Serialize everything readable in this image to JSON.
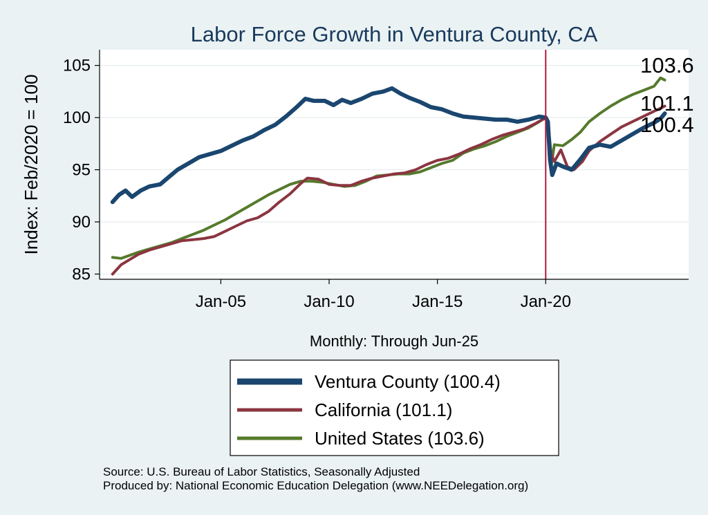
{
  "chart_data": {
    "type": "line",
    "title": "Labor Force Growth in Ventura  County, CA",
    "ylabel": "Index: Feb/2020 = 100",
    "xlabel": "Monthly: Through Jun-25",
    "ylim": [
      84.5,
      106.5
    ],
    "xlim": [
      1999.4,
      2026.6
    ],
    "yticks": [
      85,
      90,
      95,
      100,
      105
    ],
    "ytick_labels": [
      "85",
      "90",
      "95",
      "100",
      "105"
    ],
    "xticks": [
      2005,
      2010,
      2015,
      2020
    ],
    "xtick_labels": [
      "Jan-05",
      "Jan-10",
      "Jan-15",
      "Jan-20"
    ],
    "vline": {
      "x": 2020.0,
      "color": "#b5173d"
    },
    "grid": true,
    "series": [
      {
        "name": "Ventura  County",
        "legend": "Ventura  County (100.4)",
        "end_label": "100.4",
        "color": "#1a466f",
        "points": [
          [
            2000.0,
            91.9
          ],
          [
            2000.3,
            92.6
          ],
          [
            2000.6,
            93.0
          ],
          [
            2000.9,
            92.4
          ],
          [
            2001.3,
            93.0
          ],
          [
            2001.7,
            93.4
          ],
          [
            2002.2,
            93.6
          ],
          [
            2002.6,
            94.3
          ],
          [
            2003.0,
            95.0
          ],
          [
            2003.5,
            95.6
          ],
          [
            2004.0,
            96.2
          ],
          [
            2004.5,
            96.5
          ],
          [
            2005.0,
            96.8
          ],
          [
            2005.5,
            97.3
          ],
          [
            2006.0,
            97.8
          ],
          [
            2006.5,
            98.2
          ],
          [
            2007.0,
            98.8
          ],
          [
            2007.5,
            99.3
          ],
          [
            2008.0,
            100.1
          ],
          [
            2008.5,
            101.0
          ],
          [
            2008.9,
            101.8
          ],
          [
            2009.3,
            101.6
          ],
          [
            2009.8,
            101.6
          ],
          [
            2010.2,
            101.2
          ],
          [
            2010.6,
            101.7
          ],
          [
            2011.0,
            101.4
          ],
          [
            2011.5,
            101.8
          ],
          [
            2012.0,
            102.3
          ],
          [
            2012.5,
            102.5
          ],
          [
            2012.9,
            102.8
          ],
          [
            2013.3,
            102.3
          ],
          [
            2013.7,
            101.9
          ],
          [
            2014.2,
            101.5
          ],
          [
            2014.7,
            101.0
          ],
          [
            2015.2,
            100.8
          ],
          [
            2015.7,
            100.4
          ],
          [
            2016.2,
            100.1
          ],
          [
            2016.7,
            100.0
          ],
          [
            2017.2,
            99.9
          ],
          [
            2017.7,
            99.8
          ],
          [
            2018.2,
            99.8
          ],
          [
            2018.7,
            99.6
          ],
          [
            2019.2,
            99.8
          ],
          [
            2019.7,
            100.1
          ],
          [
            2020.0,
            100.0
          ],
          [
            2020.1,
            99.6
          ],
          [
            2020.2,
            96.0
          ],
          [
            2020.3,
            94.5
          ],
          [
            2020.5,
            95.6
          ],
          [
            2020.8,
            95.3
          ],
          [
            2021.2,
            95.0
          ],
          [
            2021.6,
            96.0
          ],
          [
            2022.0,
            97.1
          ],
          [
            2022.5,
            97.4
          ],
          [
            2023.0,
            97.2
          ],
          [
            2023.5,
            97.8
          ],
          [
            2024.0,
            98.4
          ],
          [
            2024.5,
            99.0
          ],
          [
            2025.0,
            99.5
          ],
          [
            2025.3,
            99.9
          ],
          [
            2025.5,
            100.4
          ]
        ]
      },
      {
        "name": "California",
        "legend": "California (101.1)",
        "end_label": "101.1",
        "color": "#8b3540",
        "points": [
          [
            2000.0,
            85.0
          ],
          [
            2000.4,
            85.9
          ],
          [
            2000.8,
            86.4
          ],
          [
            2001.2,
            86.9
          ],
          [
            2001.7,
            87.3
          ],
          [
            2002.2,
            87.6
          ],
          [
            2002.7,
            87.9
          ],
          [
            2003.2,
            88.2
          ],
          [
            2003.7,
            88.3
          ],
          [
            2004.2,
            88.4
          ],
          [
            2004.7,
            88.6
          ],
          [
            2005.2,
            89.1
          ],
          [
            2005.7,
            89.6
          ],
          [
            2006.2,
            90.1
          ],
          [
            2006.7,
            90.4
          ],
          [
            2007.2,
            91.0
          ],
          [
            2007.7,
            91.9
          ],
          [
            2008.2,
            92.7
          ],
          [
            2008.7,
            93.7
          ],
          [
            2009.0,
            94.2
          ],
          [
            2009.5,
            94.1
          ],
          [
            2010.0,
            93.6
          ],
          [
            2010.5,
            93.5
          ],
          [
            2011.0,
            93.5
          ],
          [
            2011.5,
            93.9
          ],
          [
            2012.0,
            94.2
          ],
          [
            2012.5,
            94.4
          ],
          [
            2013.0,
            94.6
          ],
          [
            2013.5,
            94.7
          ],
          [
            2014.0,
            95.0
          ],
          [
            2014.5,
            95.5
          ],
          [
            2015.0,
            95.9
          ],
          [
            2015.5,
            96.1
          ],
          [
            2016.0,
            96.5
          ],
          [
            2016.5,
            97.0
          ],
          [
            2017.0,
            97.4
          ],
          [
            2017.5,
            97.9
          ],
          [
            2018.0,
            98.3
          ],
          [
            2018.5,
            98.6
          ],
          [
            2019.0,
            98.9
          ],
          [
            2019.5,
            99.4
          ],
          [
            2020.0,
            100.0
          ],
          [
            2020.1,
            99.7
          ],
          [
            2020.25,
            96.5
          ],
          [
            2020.4,
            95.8
          ],
          [
            2020.7,
            96.9
          ],
          [
            2021.0,
            95.3
          ],
          [
            2021.3,
            95.0
          ],
          [
            2021.7,
            95.8
          ],
          [
            2022.0,
            96.8
          ],
          [
            2022.5,
            97.7
          ],
          [
            2023.0,
            98.4
          ],
          [
            2023.5,
            99.1
          ],
          [
            2024.0,
            99.6
          ],
          [
            2024.5,
            100.1
          ],
          [
            2025.0,
            100.6
          ],
          [
            2025.3,
            100.9
          ],
          [
            2025.5,
            101.1
          ]
        ]
      },
      {
        "name": "United States",
        "legend": "United States (103.6)",
        "end_label": "103.6",
        "color": "#557a2c",
        "points": [
          [
            2000.0,
            86.6
          ],
          [
            2000.4,
            86.5
          ],
          [
            2000.8,
            86.8
          ],
          [
            2001.2,
            87.1
          ],
          [
            2001.7,
            87.4
          ],
          [
            2002.2,
            87.7
          ],
          [
            2002.7,
            88.0
          ],
          [
            2003.2,
            88.4
          ],
          [
            2003.7,
            88.8
          ],
          [
            2004.2,
            89.2
          ],
          [
            2004.7,
            89.7
          ],
          [
            2005.2,
            90.2
          ],
          [
            2005.7,
            90.8
          ],
          [
            2006.2,
            91.4
          ],
          [
            2006.7,
            92.0
          ],
          [
            2007.2,
            92.6
          ],
          [
            2007.7,
            93.1
          ],
          [
            2008.2,
            93.6
          ],
          [
            2008.7,
            93.9
          ],
          [
            2009.2,
            93.9
          ],
          [
            2009.7,
            93.8
          ],
          [
            2010.2,
            93.6
          ],
          [
            2010.7,
            93.4
          ],
          [
            2011.2,
            93.5
          ],
          [
            2011.7,
            93.9
          ],
          [
            2012.2,
            94.4
          ],
          [
            2012.7,
            94.5
          ],
          [
            2013.2,
            94.6
          ],
          [
            2013.7,
            94.6
          ],
          [
            2014.2,
            94.8
          ],
          [
            2014.7,
            95.2
          ],
          [
            2015.2,
            95.6
          ],
          [
            2015.7,
            95.9
          ],
          [
            2016.2,
            96.6
          ],
          [
            2016.7,
            97.0
          ],
          [
            2017.2,
            97.3
          ],
          [
            2017.7,
            97.7
          ],
          [
            2018.2,
            98.2
          ],
          [
            2018.7,
            98.6
          ],
          [
            2019.2,
            99.0
          ],
          [
            2019.7,
            99.6
          ],
          [
            2020.0,
            100.0
          ],
          [
            2020.1,
            99.4
          ],
          [
            2020.25,
            95.3
          ],
          [
            2020.4,
            97.4
          ],
          [
            2020.8,
            97.3
          ],
          [
            2021.2,
            97.9
          ],
          [
            2021.6,
            98.6
          ],
          [
            2022.0,
            99.6
          ],
          [
            2022.5,
            100.4
          ],
          [
            2023.0,
            101.1
          ],
          [
            2023.5,
            101.7
          ],
          [
            2024.0,
            102.2
          ],
          [
            2024.5,
            102.6
          ],
          [
            2025.0,
            103.0
          ],
          [
            2025.3,
            103.8
          ],
          [
            2025.5,
            103.6
          ]
        ]
      }
    ]
  },
  "source_line1": "Source: U.S. Bureau of Labor Statistics, Seasonally Adjusted",
  "source_line2": "Produced by: National Economic Education Delegation (www.NEEDelegation.org)"
}
